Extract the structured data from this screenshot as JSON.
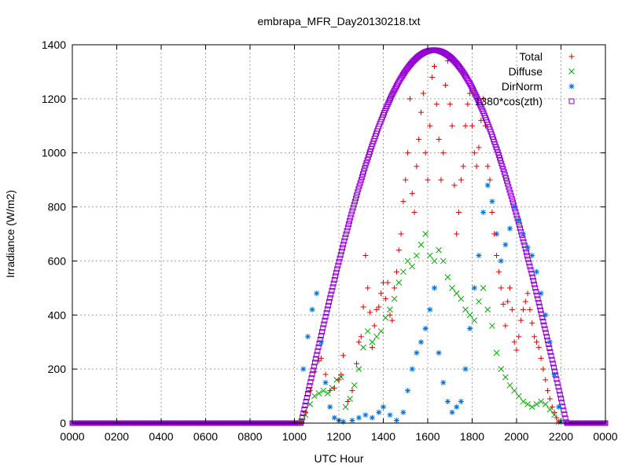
{
  "chart_data": {
    "type": "scatter",
    "title": "embrapa_MFR_Day20130218.txt",
    "xlabel": "UTC Hour",
    "ylabel": "Irradiance (W/m2)",
    "xlim": [
      0,
      24
    ],
    "ylim": [
      0,
      1400
    ],
    "xticks": [
      "0000",
      "0200",
      "0400",
      "0600",
      "0800",
      "1000",
      "1200",
      "1400",
      "1600",
      "1800",
      "2000",
      "2200",
      "0000"
    ],
    "yticks": [
      0,
      200,
      400,
      600,
      800,
      1000,
      1200,
      1400
    ],
    "grid": true,
    "legend_position": "top-right",
    "series": [
      {
        "name": "Total",
        "marker": "plus",
        "color": "#dd0000",
        "points": [
          [
            10.3,
            5
          ],
          [
            10.5,
            40
          ],
          [
            10.7,
            120
          ],
          [
            10.9,
            190
          ],
          [
            11.1,
            230
          ],
          [
            11.2,
            240
          ],
          [
            11.4,
            180
          ],
          [
            11.6,
            120
          ],
          [
            11.8,
            130
          ],
          [
            12.0,
            160
          ],
          [
            12.1,
            180
          ],
          [
            12.2,
            250
          ],
          [
            12.4,
            80
          ],
          [
            12.6,
            120
          ],
          [
            12.8,
            220
          ],
          [
            12.9,
            300
          ],
          [
            13.0,
            320
          ],
          [
            13.1,
            430
          ],
          [
            13.2,
            620
          ],
          [
            13.3,
            500
          ],
          [
            13.4,
            410
          ],
          [
            13.5,
            280
          ],
          [
            13.6,
            360
          ],
          [
            13.7,
            420
          ],
          [
            13.8,
            430
          ],
          [
            13.9,
            480
          ],
          [
            14.0,
            520
          ],
          [
            14.1,
            460
          ],
          [
            14.2,
            520
          ],
          [
            14.3,
            400
          ],
          [
            14.4,
            380
          ],
          [
            14.5,
            500
          ],
          [
            14.6,
            560
          ],
          [
            14.7,
            640
          ],
          [
            14.8,
            700
          ],
          [
            14.9,
            820
          ],
          [
            15.0,
            900
          ],
          [
            15.1,
            1000
          ],
          [
            15.2,
            1200
          ],
          [
            15.3,
            850
          ],
          [
            15.4,
            780
          ],
          [
            15.5,
            950
          ],
          [
            15.6,
            1050
          ],
          [
            15.7,
            1150
          ],
          [
            15.8,
            1220
          ],
          [
            15.9,
            1000
          ],
          [
            16.0,
            900
          ],
          [
            16.1,
            1100
          ],
          [
            16.2,
            1280
          ],
          [
            16.3,
            1320
          ],
          [
            16.4,
            1180
          ],
          [
            16.5,
            1050
          ],
          [
            16.6,
            900
          ],
          [
            16.7,
            1000
          ],
          [
            16.8,
            1250
          ],
          [
            16.9,
            1340
          ],
          [
            17.0,
            1180
          ],
          [
            17.1,
            1100
          ],
          [
            17.2,
            880
          ],
          [
            17.3,
            700
          ],
          [
            17.4,
            780
          ],
          [
            17.5,
            900
          ],
          [
            17.6,
            950
          ],
          [
            17.7,
            1100
          ],
          [
            17.8,
            1180
          ],
          [
            17.9,
            1220
          ],
          [
            18.0,
            1100
          ],
          [
            18.1,
            1000
          ],
          [
            18.2,
            950
          ],
          [
            18.3,
            1020
          ],
          [
            18.4,
            1120
          ],
          [
            18.5,
            1200
          ],
          [
            18.6,
            1100
          ],
          [
            18.7,
            950
          ],
          [
            18.8,
            900
          ],
          [
            18.9,
            780
          ],
          [
            19.0,
            700
          ],
          [
            19.1,
            620
          ],
          [
            19.2,
            560
          ],
          [
            19.3,
            500
          ],
          [
            19.4,
            440
          ],
          [
            19.5,
            360
          ],
          [
            19.6,
            450
          ],
          [
            19.7,
            500
          ],
          [
            19.8,
            420
          ],
          [
            19.9,
            300
          ],
          [
            20.0,
            270
          ],
          [
            20.1,
            320
          ],
          [
            20.2,
            380
          ],
          [
            20.3,
            420
          ],
          [
            20.4,
            450
          ],
          [
            20.5,
            480
          ],
          [
            20.6,
            420
          ],
          [
            20.7,
            370
          ],
          [
            20.8,
            320
          ],
          [
            20.9,
            300
          ],
          [
            21.0,
            280
          ],
          [
            21.1,
            240
          ],
          [
            21.2,
            200
          ],
          [
            21.3,
            160
          ],
          [
            21.4,
            120
          ],
          [
            21.5,
            90
          ],
          [
            21.6,
            60
          ],
          [
            21.7,
            40
          ],
          [
            21.8,
            20
          ],
          [
            21.9,
            5
          ]
        ]
      },
      {
        "name": "Diffuse",
        "marker": "cross",
        "color": "#00aa00",
        "points": [
          [
            10.3,
            5
          ],
          [
            10.5,
            30
          ],
          [
            10.7,
            70
          ],
          [
            10.9,
            100
          ],
          [
            11.1,
            110
          ],
          [
            11.3,
            120
          ],
          [
            11.5,
            110
          ],
          [
            11.7,
            130
          ],
          [
            11.9,
            160
          ],
          [
            12.1,
            170
          ],
          [
            12.3,
            60
          ],
          [
            12.5,
            90
          ],
          [
            12.7,
            140
          ],
          [
            12.9,
            200
          ],
          [
            13.1,
            280
          ],
          [
            13.3,
            340
          ],
          [
            13.5,
            300
          ],
          [
            13.7,
            320
          ],
          [
            13.9,
            340
          ],
          [
            14.1,
            390
          ],
          [
            14.3,
            420
          ],
          [
            14.5,
            460
          ],
          [
            14.7,
            520
          ],
          [
            14.9,
            560
          ],
          [
            15.1,
            600
          ],
          [
            15.3,
            580
          ],
          [
            15.5,
            620
          ],
          [
            15.7,
            660
          ],
          [
            15.9,
            700
          ],
          [
            16.1,
            620
          ],
          [
            16.3,
            600
          ],
          [
            16.5,
            640
          ],
          [
            16.7,
            600
          ],
          [
            16.9,
            540
          ],
          [
            17.1,
            500
          ],
          [
            17.3,
            480
          ],
          [
            17.5,
            460
          ],
          [
            17.7,
            420
          ],
          [
            17.9,
            400
          ],
          [
            18.1,
            380
          ],
          [
            18.3,
            450
          ],
          [
            18.5,
            500
          ],
          [
            18.7,
            420
          ],
          [
            18.9,
            360
          ],
          [
            19.1,
            260
          ],
          [
            19.3,
            200
          ],
          [
            19.5,
            170
          ],
          [
            19.7,
            140
          ],
          [
            19.9,
            120
          ],
          [
            20.1,
            100
          ],
          [
            20.3,
            80
          ],
          [
            20.5,
            70
          ],
          [
            20.7,
            60
          ],
          [
            20.9,
            70
          ],
          [
            21.1,
            80
          ],
          [
            21.3,
            70
          ],
          [
            21.5,
            50
          ],
          [
            21.7,
            30
          ],
          [
            21.9,
            5
          ]
        ]
      },
      {
        "name": "DirNorm",
        "marker": "star",
        "color": "#0072e0",
        "points": [
          [
            10.4,
            200
          ],
          [
            10.6,
            320
          ],
          [
            10.8,
            420
          ],
          [
            11.0,
            480
          ],
          [
            11.2,
            300
          ],
          [
            11.4,
            150
          ],
          [
            11.6,
            60
          ],
          [
            11.8,
            20
          ],
          [
            12.0,
            10
          ],
          [
            12.2,
            5
          ],
          [
            12.6,
            10
          ],
          [
            12.9,
            20
          ],
          [
            13.2,
            30
          ],
          [
            13.5,
            20
          ],
          [
            13.8,
            40
          ],
          [
            14.0,
            60
          ],
          [
            14.3,
            30
          ],
          [
            14.6,
            10
          ],
          [
            14.9,
            40
          ],
          [
            15.1,
            120
          ],
          [
            15.3,
            200
          ],
          [
            15.5,
            260
          ],
          [
            15.7,
            300
          ],
          [
            15.9,
            350
          ],
          [
            16.1,
            420
          ],
          [
            16.3,
            500
          ],
          [
            16.5,
            260
          ],
          [
            16.7,
            150
          ],
          [
            16.9,
            80
          ],
          [
            17.1,
            40
          ],
          [
            17.3,
            60
          ],
          [
            17.5,
            80
          ],
          [
            17.7,
            200
          ],
          [
            17.9,
            350
          ],
          [
            18.1,
            500
          ],
          [
            18.3,
            620
          ],
          [
            18.5,
            780
          ],
          [
            18.7,
            880
          ],
          [
            18.9,
            820
          ],
          [
            19.1,
            700
          ],
          [
            19.3,
            600
          ],
          [
            19.5,
            660
          ],
          [
            19.7,
            720
          ],
          [
            19.9,
            800
          ],
          [
            20.1,
            750
          ],
          [
            20.3,
            700
          ],
          [
            20.5,
            650
          ],
          [
            20.7,
            620
          ],
          [
            20.9,
            560
          ],
          [
            21.1,
            480
          ],
          [
            21.3,
            400
          ],
          [
            21.5,
            300
          ],
          [
            21.7,
            180
          ],
          [
            21.9,
            60
          ],
          [
            22.0,
            5
          ]
        ]
      },
      {
        "name": "1380*cos(zth)",
        "marker": "square",
        "color": "#9400d3",
        "curve": {
          "sunrise": 10.3,
          "sunset": 22.25,
          "peak": 1380,
          "peak_time": 16.27
        }
      }
    ]
  }
}
